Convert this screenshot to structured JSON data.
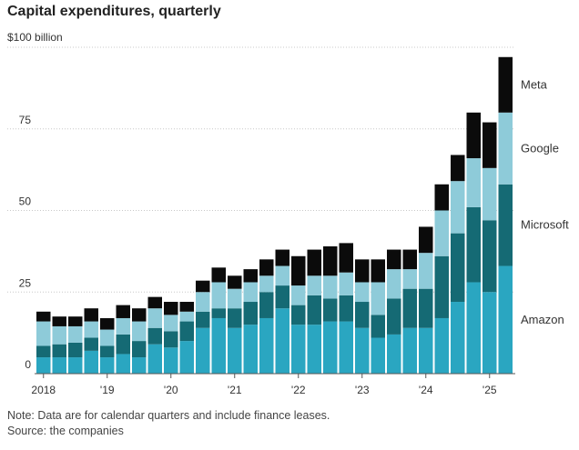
{
  "title": "Capital expenditures, quarterly",
  "notes": {
    "note": "Note: Data are for calendar quarters and include finance leases.",
    "source": "Source: the companies"
  },
  "colors": {
    "Amazon": "#2aa6c1",
    "Microsoft": "#156a74",
    "Google": "#8ecbd9",
    "Meta": "#0b0b0b",
    "grid": "#c8c8c8",
    "axis": "#555555"
  },
  "chart_data": {
    "type": "bar",
    "stacked": true,
    "unit_label": "$100 billion",
    "ylim": [
      0,
      100
    ],
    "yticks": [
      0,
      25,
      50,
      75
    ],
    "xtick_labels": [
      "2018",
      "'19",
      "'20",
      "'21",
      "'22",
      "'23",
      "'24",
      "'25"
    ],
    "xtick_positions": [
      0,
      4,
      8,
      12,
      16,
      20,
      24,
      28
    ],
    "grid": true,
    "legend": "right, labels next to final bar",
    "categories": [
      "Q1 2018",
      "Q2 2018",
      "Q3 2018",
      "Q4 2018",
      "Q1 2019",
      "Q2 2019",
      "Q3 2019",
      "Q4 2019",
      "Q1 2020",
      "Q2 2020",
      "Q3 2020",
      "Q4 2020",
      "Q1 2021",
      "Q2 2021",
      "Q3 2021",
      "Q4 2021",
      "Q1 2022",
      "Q2 2022",
      "Q3 2022",
      "Q4 2022",
      "Q1 2023",
      "Q2 2023",
      "Q3 2023",
      "Q4 2023",
      "Q1 2024",
      "Q2 2024",
      "Q3 2024",
      "Q4 2024",
      "Q1 2025",
      "Q2 2025"
    ],
    "series": [
      {
        "name": "Amazon",
        "values": [
          5,
          5,
          5,
          7,
          5,
          6,
          5,
          9,
          8,
          10,
          14,
          17,
          14,
          15,
          17,
          20,
          15,
          15,
          16,
          16,
          14,
          11,
          12,
          14,
          14,
          17,
          22,
          28,
          25,
          33
        ]
      },
      {
        "name": "Microsoft",
        "values": [
          3.5,
          4,
          4.5,
          4,
          3.5,
          6,
          5,
          5,
          5,
          6,
          5,
          3,
          6,
          7,
          8,
          7,
          6,
          9,
          7,
          8,
          8,
          7,
          11,
          12,
          12,
          19,
          21,
          23,
          22,
          25
        ]
      },
      {
        "name": "Google",
        "values": [
          7.5,
          5.5,
          5,
          5,
          5,
          5,
          6,
          6,
          5,
          3,
          6,
          8,
          6,
          6,
          5,
          6,
          6,
          6,
          7,
          7,
          6,
          10,
          9,
          6,
          11,
          14,
          16,
          15,
          16,
          22
        ]
      },
      {
        "name": "Meta",
        "values": [
          3,
          3,
          3,
          4,
          3.5,
          4,
          4,
          3.5,
          4,
          3,
          3.5,
          4.5,
          4,
          4,
          5,
          5,
          9,
          8,
          9,
          9,
          7,
          7,
          6,
          6,
          8,
          8,
          8,
          14,
          14,
          17
        ]
      }
    ]
  }
}
